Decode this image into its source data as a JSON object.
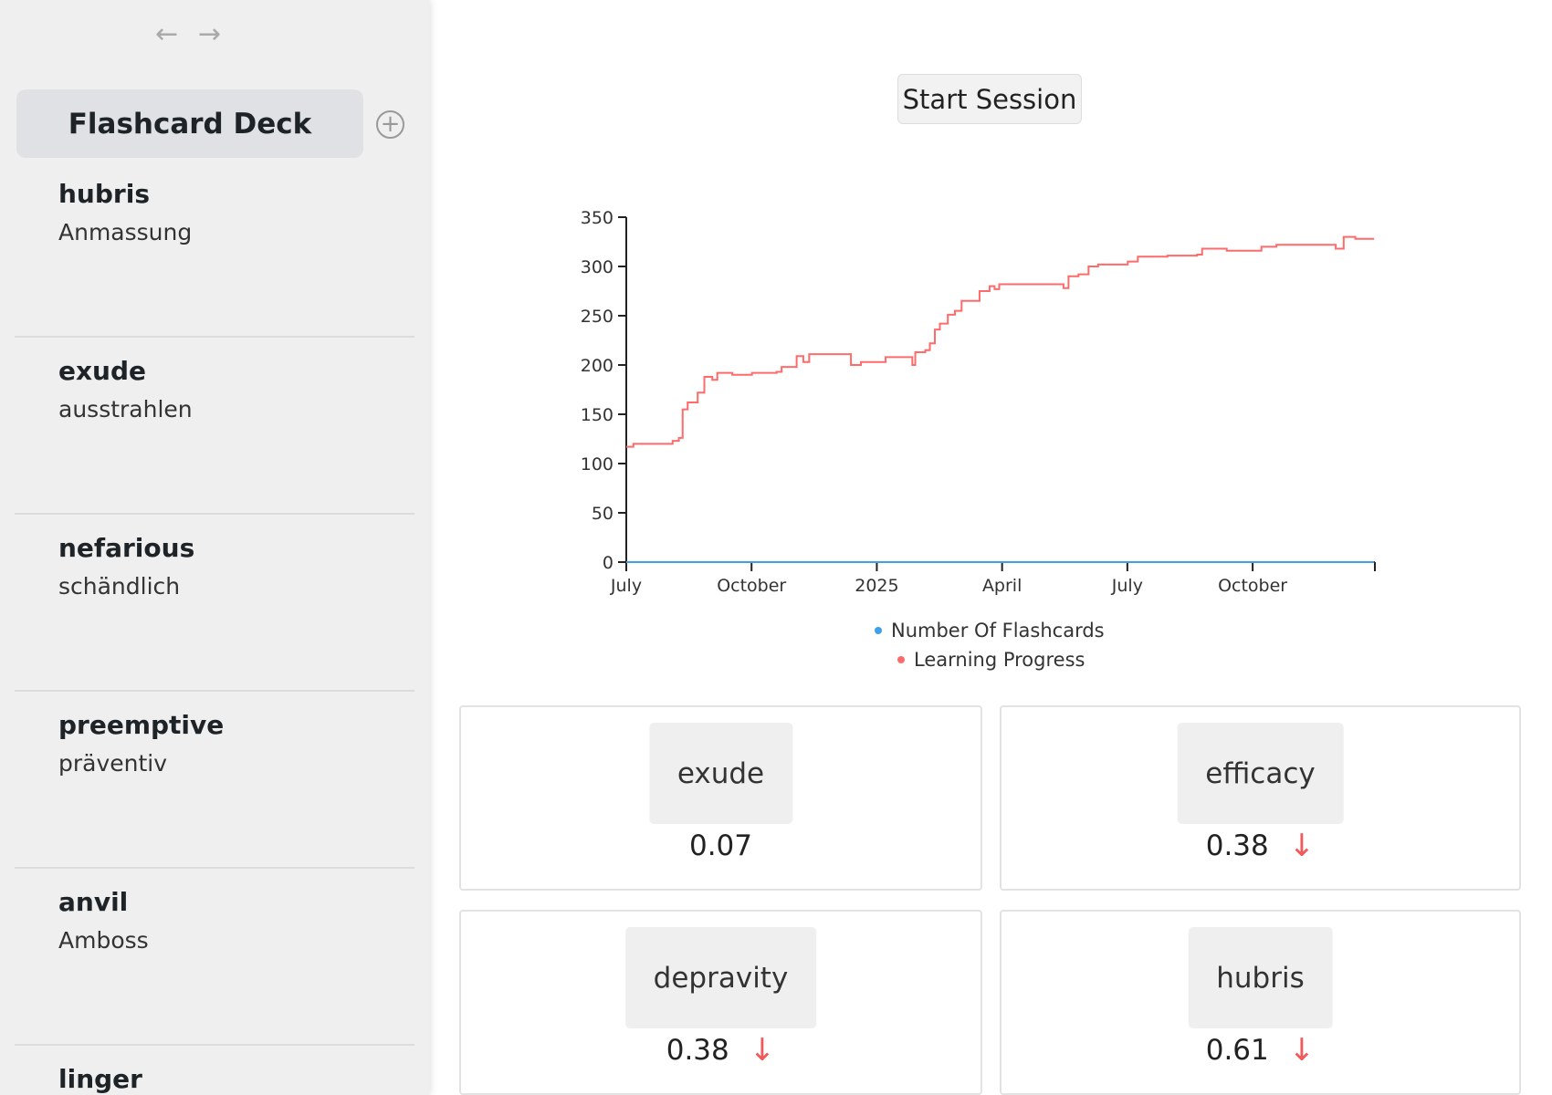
{
  "sidebar": {
    "back_icon": "←",
    "forward_icon": "→",
    "deck_title": "Flashcard Deck",
    "add_icon": "+",
    "items": [
      {
        "word": "hubris",
        "translation": "Anmassung"
      },
      {
        "word": "exude",
        "translation": "ausstrahlen"
      },
      {
        "word": "nefarious",
        "translation": "schändlich"
      },
      {
        "word": "preemptive",
        "translation": "präventiv"
      },
      {
        "word": "anvil",
        "translation": "Amboss"
      },
      {
        "word": "linger",
        "translation": ""
      }
    ]
  },
  "main": {
    "start_label": "Start Session",
    "cards": [
      {
        "word": "exude",
        "score": "0.07",
        "trend": ""
      },
      {
        "word": "efficacy",
        "score": "0.38",
        "trend": "↓"
      },
      {
        "word": "depravity",
        "score": "0.38",
        "trend": "↓"
      },
      {
        "word": "hubris",
        "score": "0.61",
        "trend": "↓"
      }
    ]
  },
  "colors": {
    "flashcards": "#3ea0e8",
    "progress": "#ff6b6b"
  },
  "chart_data": {
    "type": "line",
    "xlabel": "",
    "ylabel": "",
    "ylim": [
      0,
      350
    ],
    "yticks": [
      0,
      50,
      100,
      150,
      200,
      250,
      300,
      350
    ],
    "xlim_months": [
      0,
      18
    ],
    "xticks": [
      {
        "m": 0,
        "label": "July"
      },
      {
        "m": 3,
        "label": "October"
      },
      {
        "m": 6,
        "label": "2025"
      },
      {
        "m": 9,
        "label": "April"
      },
      {
        "m": 12,
        "label": "July"
      },
      {
        "m": 15,
        "label": "October"
      },
      {
        "m": 18,
        "label": ""
      }
    ],
    "legend": [
      "Number Of Flashcards",
      "Learning Progress"
    ],
    "series": [
      {
        "name": "Number Of Flashcards",
        "x": [
          0,
          17.91
        ],
        "y": [
          0,
          0
        ]
      },
      {
        "name": "Learning Progress",
        "x": [
          0,
          0.17,
          0.88,
          1.11,
          1.26,
          1.35,
          1.47,
          1.71,
          1.87,
          2.06,
          2.18,
          2.54,
          3.01,
          3.6,
          3.72,
          3.96,
          4.08,
          4.24,
          4.38,
          5.26,
          5.38,
          5.62,
          6.09,
          6.21,
          6.75,
          6.85,
          6.92,
          7.16,
          7.27,
          7.39,
          7.51,
          7.7,
          7.87,
          8.03,
          8.34,
          8.46,
          8.7,
          8.82,
          8.93,
          10.36,
          10.47,
          10.59,
          10.83,
          11.07,
          11.3,
          12.01,
          12.25,
          12.96,
          13.67,
          13.79,
          14.38,
          15.09,
          15.21,
          15.57,
          16.75,
          16.99,
          17.18,
          17.46,
          17.91
        ],
        "y": [
          117,
          120,
          120,
          123,
          126,
          155,
          162,
          172,
          188,
          185,
          192,
          190,
          192,
          193,
          198,
          198,
          209,
          203,
          211,
          211,
          200,
          203,
          203,
          208,
          208,
          200,
          213,
          215,
          222,
          236,
          242,
          251,
          255,
          265,
          265,
          275,
          280,
          277,
          282,
          282,
          278,
          290,
          292,
          300,
          302,
          305,
          310,
          311,
          312,
          318,
          316,
          316,
          320,
          322,
          322,
          318,
          330,
          328,
          328
        ]
      }
    ]
  }
}
